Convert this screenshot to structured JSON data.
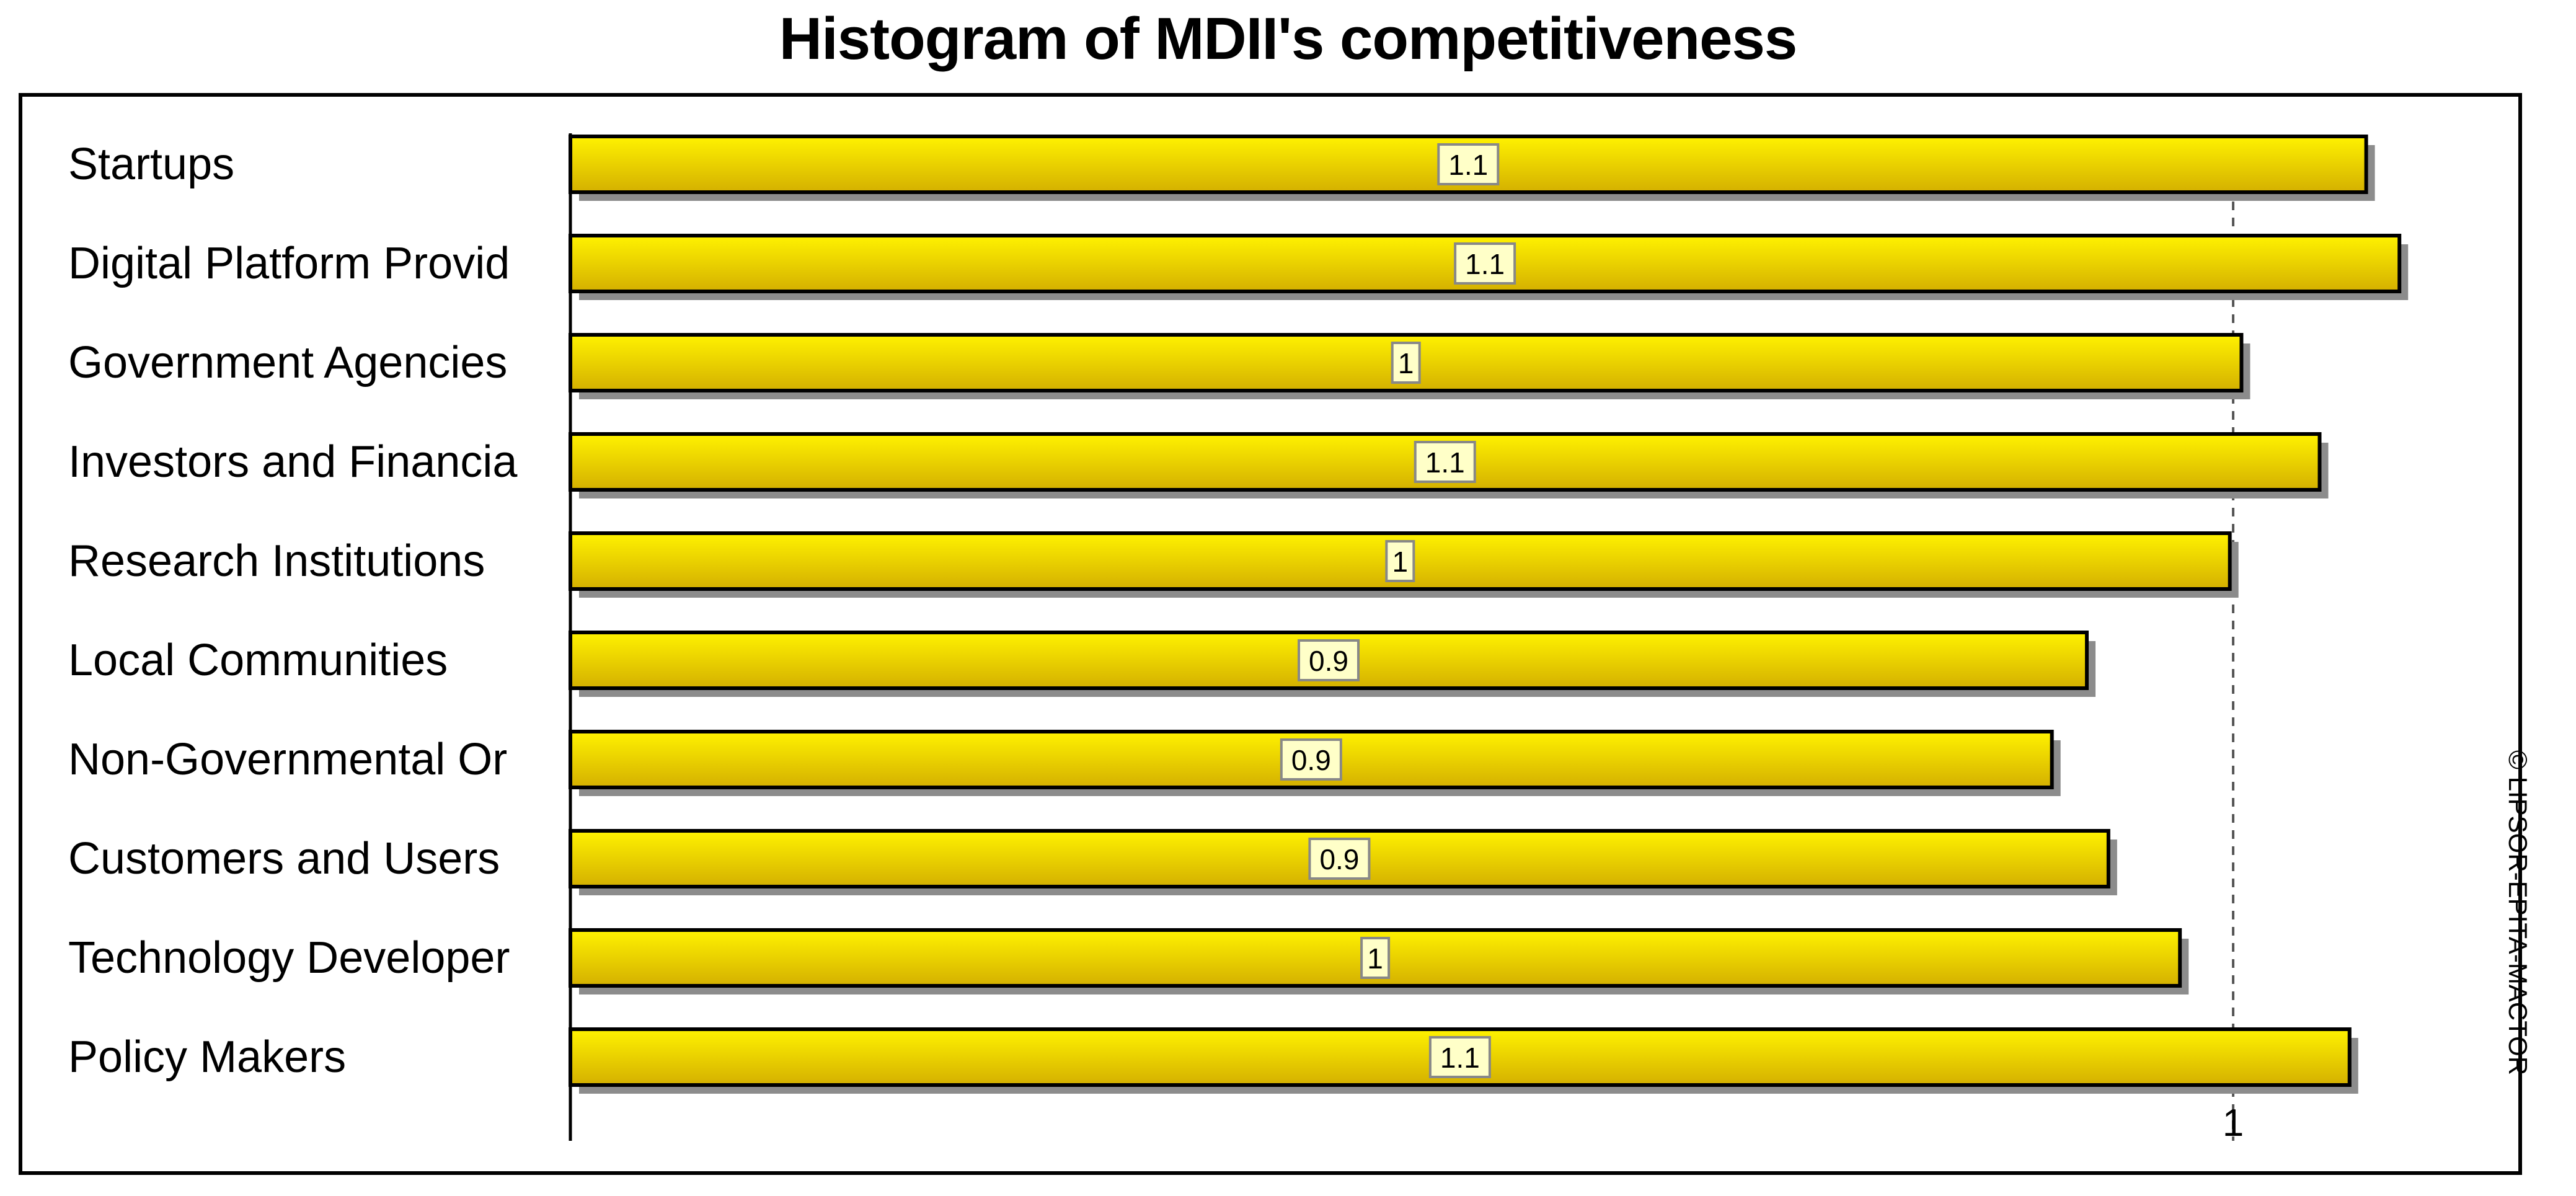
{
  "chart_data": {
    "type": "bar",
    "orientation": "horizontal",
    "title": "Histogram of MDII's competitiveness",
    "categories": [
      "Startups",
      "Digital Platform Provid",
      "Government Agencies",
      "Investors and Financia",
      "Research Institutions",
      "Local Communities",
      "Non-Governmental Or",
      "Customers and Users",
      "Technology Developer",
      "Policy Makers"
    ],
    "values": [
      1.08,
      1.1,
      1.005,
      1.052,
      0.998,
      0.912,
      0.891,
      0.925,
      0.968,
      1.07
    ],
    "value_labels": [
      "1.1",
      "1.1",
      "1",
      "1.1",
      "1",
      "0.9",
      "0.9",
      "0.9",
      "1",
      "1.1"
    ],
    "xlabel": "",
    "ylabel": "",
    "xlim": [
      0,
      1.15
    ],
    "ticks": [
      {
        "value": 1,
        "label": "1"
      }
    ],
    "reference_line": 1,
    "grid": false,
    "legend": "none",
    "colors": {
      "bar_top": "#FFF200",
      "bar_bottom": "#D4B000",
      "bar_edge": "#000000",
      "shadow": "#8C8C8C",
      "label_box": "#FFFFC8"
    }
  },
  "copyright": "© LIPSOR-EPITA-MACTOR"
}
